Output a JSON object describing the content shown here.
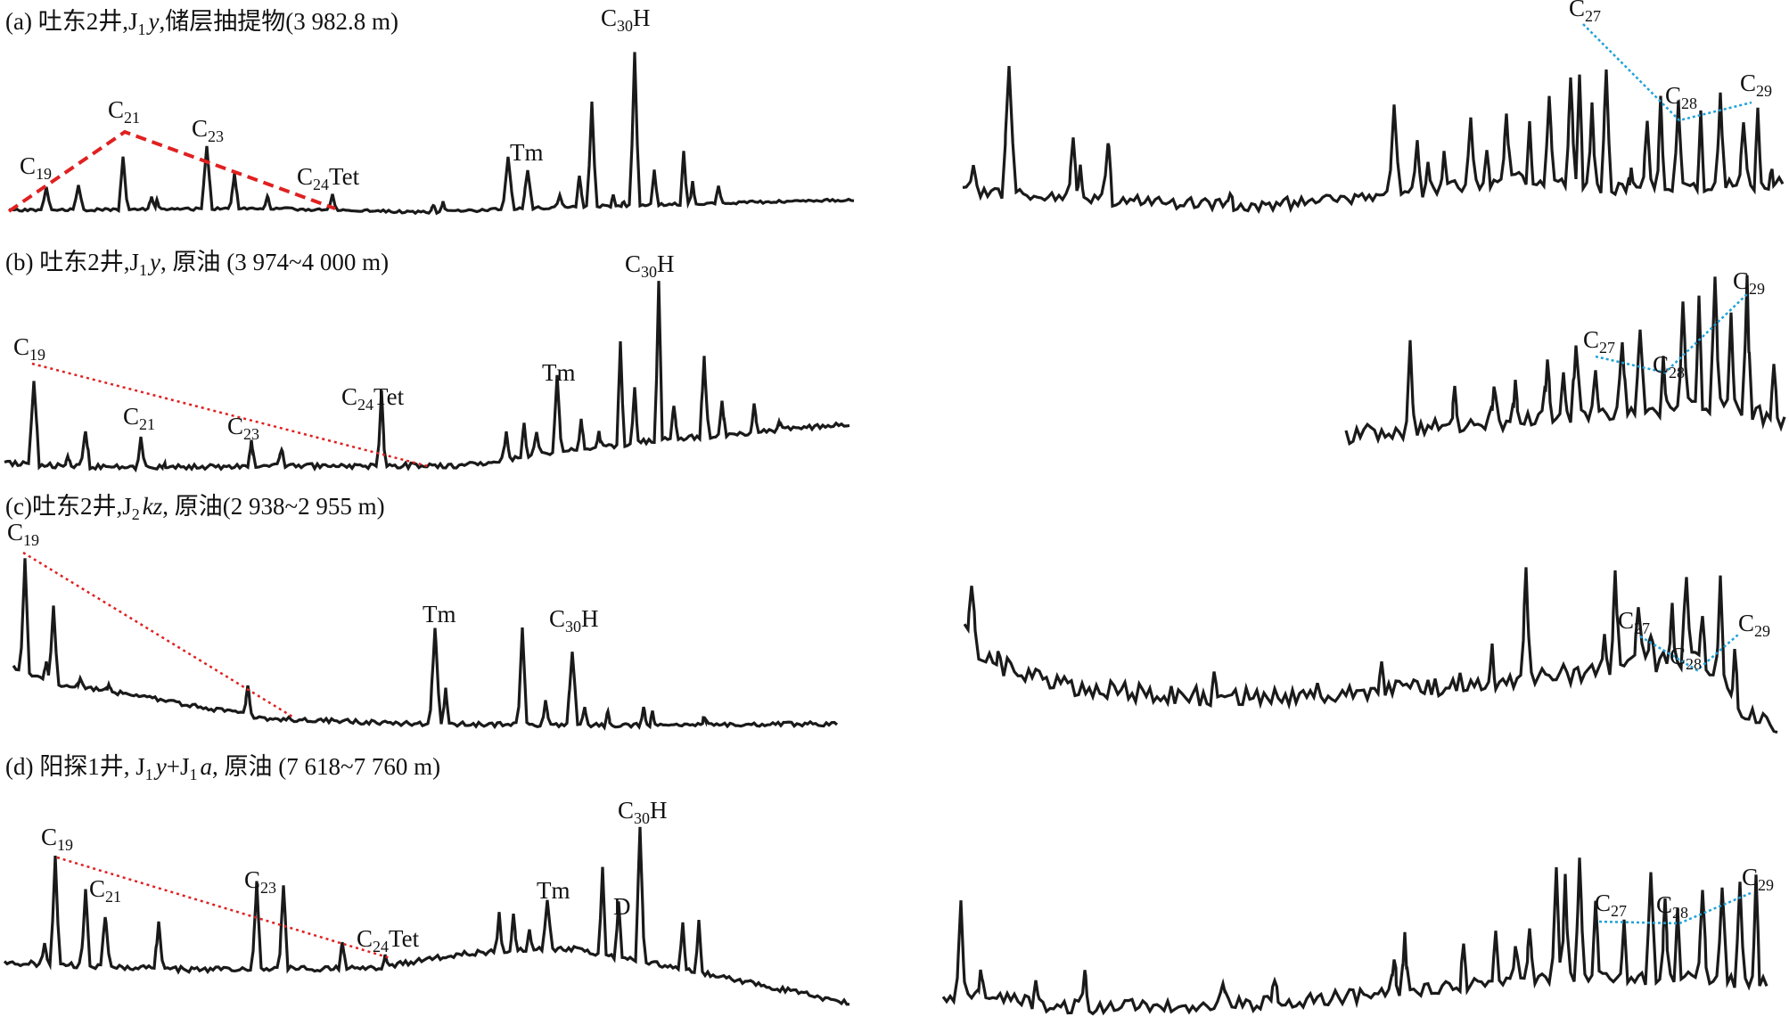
{
  "chart_data": {
    "type": "line",
    "description_type": "mass chromatograms (terpanes m/z 191, steranes m/z 217)",
    "colors": {
      "trace": "#1a1a1a",
      "tricyclic_trend": "#e02020",
      "sterane_trend": "#1fa2d8"
    },
    "panels": [
      {
        "id": "a",
        "title": "(a) 吐东2井,J₁y,储层抽提物(3 982.8 m)",
        "title_parts": {
          "pre": "(a) 吐东2井,J",
          "sub": "1",
          "italic": "y",
          "post": ",储层抽提物(3 982.8 m)"
        },
        "peaks": {
          "C19": 0.18,
          "C21": 0.7,
          "C23": 0.45,
          "C24Tet": 0.12,
          "Tm": 0.43,
          "C30H": 1.0
        },
        "sterane_peaks": {
          "C27": 1.0,
          "C28": 0.52,
          "C29": 0.59
        }
      },
      {
        "id": "b",
        "title": "(b) 吐东2井,J₁y, 原油 (3 974~4 000 m)",
        "title_parts": {
          "pre": "(b) 吐东2井,J",
          "sub": "1",
          "italic": "y",
          "post": ", 原油 (3 974~4 000 m)"
        },
        "peaks": {
          "C19": 0.55,
          "C21": 0.17,
          "C23": 0.17,
          "C24Tet": 0.32,
          "Tm": 0.42,
          "C30H": 1.0
        },
        "sterane_peaks": {
          "C27": 0.39,
          "C28": 0.33,
          "C29": 0.84
        }
      },
      {
        "id": "c",
        "title": "(c)吐东2井,J₂kz, 原油(2 938~2 955 m)",
        "title_parts": {
          "pre": "(c)吐东2井,J",
          "sub": "2",
          "italic": "kz",
          "post": ", 原油(2 938~2 955 m)"
        },
        "peaks": {
          "C19": 1.0,
          "Tm": 0.55,
          "C30H": 0.48
        },
        "sterane_peaks": {
          "C27": 0.6,
          "C28": 0.42,
          "C29": 0.63
        }
      },
      {
        "id": "d",
        "title": "(d) 阳探1井, J₁y+J₁a, 原油 (7 618~7 760 m)",
        "title_parts": {
          "pre": "(d) 阳探1井, J",
          "sub": "1",
          "italic": "y",
          "mid": "+J",
          "sub2": "1",
          "italic2": "a",
          "post": ", 原油 (7 618~7 760 m)"
        },
        "peaks": {
          "C19": 0.78,
          "C21": 0.56,
          "C23": 0.57,
          "C24Tet": 0.14,
          "Tm": 0.44,
          "D": 0.6,
          "C30H": 1.0
        },
        "sterane_peaks": {
          "C27": 0.56,
          "C28": 0.56,
          "C29": 0.68
        }
      }
    ],
    "peak_labels": {
      "C19": {
        "base": "C",
        "sub": "19"
      },
      "C21": {
        "base": "C",
        "sub": "21"
      },
      "C23": {
        "base": "C",
        "sub": "23"
      },
      "C24Tet": {
        "base": "C",
        "sub": "24",
        "post": "Tet"
      },
      "Tm": {
        "base": "Tm"
      },
      "D": {
        "base": "D"
      },
      "C30H": {
        "base": "C",
        "sub": "30",
        "post": "H"
      },
      "C27": {
        "base": "C",
        "sub": "27"
      },
      "C28": {
        "base": "C",
        "sub": "28"
      },
      "C29": {
        "base": "C",
        "sub": "29"
      }
    }
  }
}
